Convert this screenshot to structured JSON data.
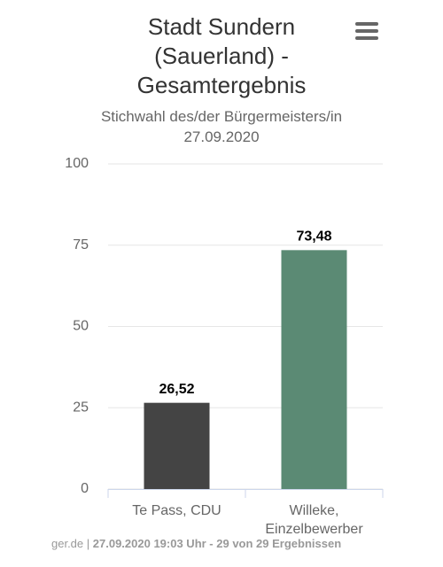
{
  "chart_data": {
    "type": "bar",
    "title": "Stadt Sundern (Sauerland) - Gesamtergebnis",
    "subtitle": "Stichwahl des/der Bürgermeisters/in 27.09.2020",
    "categories": [
      "Te Pass, CDU",
      "Willeke, Einzelbewerber"
    ],
    "values": [
      26.52,
      73.48
    ],
    "value_labels": [
      "26,52",
      "73,48"
    ],
    "colors": [
      "#444444",
      "#5b8a74"
    ],
    "ylim": [
      0,
      100
    ],
    "yticks": [
      0,
      25,
      50,
      75,
      100
    ],
    "grid": true,
    "source": "ger.de |",
    "credits": "27.09.2020 19:03 Uhr - 29 von 29 Ergebnissen"
  }
}
